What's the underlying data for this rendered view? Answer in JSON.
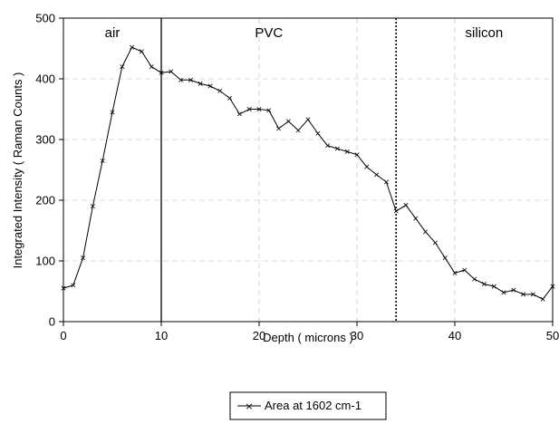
{
  "chart_data": {
    "type": "line",
    "xlabel": "Depth ( microns )",
    "ylabel": "Integrated Intensity ( Raman Counts )",
    "xlim": [
      0,
      50
    ],
    "ylim": [
      0,
      500
    ],
    "x_ticks": [
      0,
      10,
      20,
      30,
      40,
      50
    ],
    "y_ticks": [
      0,
      100,
      200,
      300,
      400,
      500
    ],
    "legend_position": "bottom-center",
    "region_labels": [
      {
        "label": "air",
        "x": 5
      },
      {
        "label": "PVC",
        "x": 21
      },
      {
        "label": "silicon",
        "x": 43
      }
    ],
    "boundaries": [
      {
        "x": 10,
        "style": "solid"
      },
      {
        "x": 34,
        "style": "dotted"
      }
    ],
    "series": [
      {
        "name": "Area at 1602 cm-1",
        "color": "#000000",
        "x": [
          0,
          1,
          2,
          3,
          4,
          5,
          6,
          7,
          8,
          9,
          10,
          11,
          12,
          13,
          14,
          15,
          16,
          17,
          18,
          19,
          20,
          21,
          22,
          23,
          24,
          25,
          26,
          27,
          28,
          29,
          30,
          31,
          32,
          33,
          34,
          35,
          36,
          37,
          38,
          39,
          40,
          41,
          42,
          43,
          44,
          45,
          46,
          47,
          48,
          49,
          50
        ],
        "y": [
          55,
          60,
          105,
          190,
          265,
          345,
          420,
          452,
          445,
          420,
          410,
          412,
          398,
          398,
          392,
          388,
          380,
          368,
          342,
          350,
          350,
          348,
          318,
          330,
          315,
          333,
          310,
          290,
          285,
          280,
          275,
          255,
          242,
          230,
          182,
          192,
          170,
          148,
          130,
          105,
          80,
          85,
          70,
          62,
          58,
          48,
          52,
          45,
          45,
          37,
          58
        ]
      }
    ]
  }
}
